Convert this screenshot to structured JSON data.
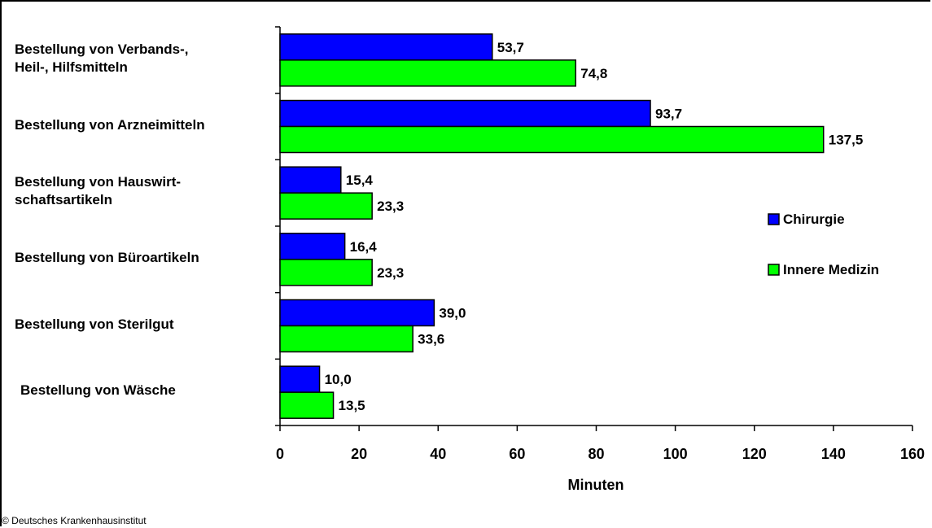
{
  "chart_data": {
    "type": "bar",
    "orientation": "horizontal",
    "categories": [
      "Bestellung von Verbands-,\nHeil-, Hilfsmitteln",
      "Bestellung von Arzneimitteln",
      "Bestellung von Hauswirt-\nschaftsartikeln",
      "Bestellung von Büroartikeln",
      "Bestellung von Sterilgut",
      "Bestellung von Wäsche"
    ],
    "series": [
      {
        "name": "Chirurgie",
        "color": "#0000ff",
        "values": [
          53.7,
          93.7,
          15.4,
          16.4,
          39.0,
          10.0
        ],
        "labels": [
          "53,7",
          "93,7",
          "15,4",
          "16,4",
          "39,0",
          "10,0"
        ]
      },
      {
        "name": "Innere Medizin",
        "color": "#00ff00",
        "values": [
          74.8,
          137.5,
          23.3,
          23.3,
          33.6,
          13.5
        ],
        "labels": [
          "74,8",
          "137,5",
          "23,3",
          "23,3",
          "33,6",
          "13,5"
        ]
      }
    ],
    "xlabel": "Minuten",
    "xlim": [
      0,
      160
    ],
    "xticks": [
      0,
      20,
      40,
      60,
      80,
      100,
      120,
      140,
      160
    ],
    "grid": false,
    "legend": "right"
  },
  "copyright": "© Deutsches Krankenhausinstitut"
}
